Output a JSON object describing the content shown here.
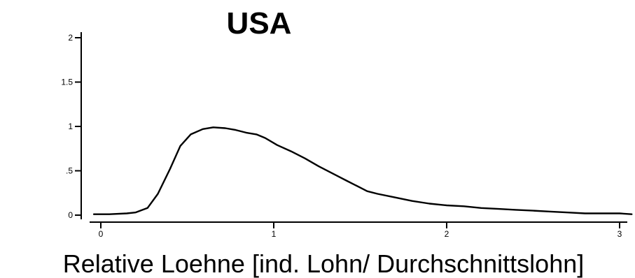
{
  "chart_data": {
    "type": "line",
    "title": "USA",
    "xlabel": "Relative Loehne [ind. Lohn/ Durchschnittslohn]",
    "ylabel": "",
    "xlim": [
      -0.05,
      3.07
    ],
    "ylim": [
      0,
      2
    ],
    "x_ticks": [
      0,
      1,
      2,
      3
    ],
    "x_tick_labels": [
      "0",
      "1",
      "2",
      "3"
    ],
    "y_ticks": [
      0,
      0.5,
      1,
      1.5,
      2
    ],
    "y_tick_labels": [
      "0",
      ".5",
      "1",
      "1.5",
      "2"
    ],
    "grid": false,
    "line_color": "#000000",
    "series": [
      {
        "x": [
          -0.04,
          0.05,
          0.15,
          0.2,
          0.27,
          0.33,
          0.4,
          0.46,
          0.52,
          0.59,
          0.65,
          0.72,
          0.78,
          0.84,
          0.9,
          0.95,
          1.02,
          1.1,
          1.18,
          1.26,
          1.34,
          1.42,
          1.5,
          1.54,
          1.6,
          1.7,
          1.8,
          1.9,
          2.0,
          2.1,
          2.2,
          2.3,
          2.4,
          2.5,
          2.6,
          2.7,
          2.8,
          2.9,
          3.0,
          3.07
        ],
        "y": [
          0.01,
          0.01,
          0.02,
          0.03,
          0.08,
          0.24,
          0.52,
          0.78,
          0.91,
          0.97,
          0.99,
          0.98,
          0.96,
          0.93,
          0.91,
          0.87,
          0.79,
          0.72,
          0.64,
          0.55,
          0.47,
          0.39,
          0.31,
          0.27,
          0.24,
          0.2,
          0.16,
          0.13,
          0.11,
          0.1,
          0.08,
          0.07,
          0.06,
          0.05,
          0.04,
          0.03,
          0.02,
          0.02,
          0.02,
          0.01
        ]
      }
    ]
  }
}
